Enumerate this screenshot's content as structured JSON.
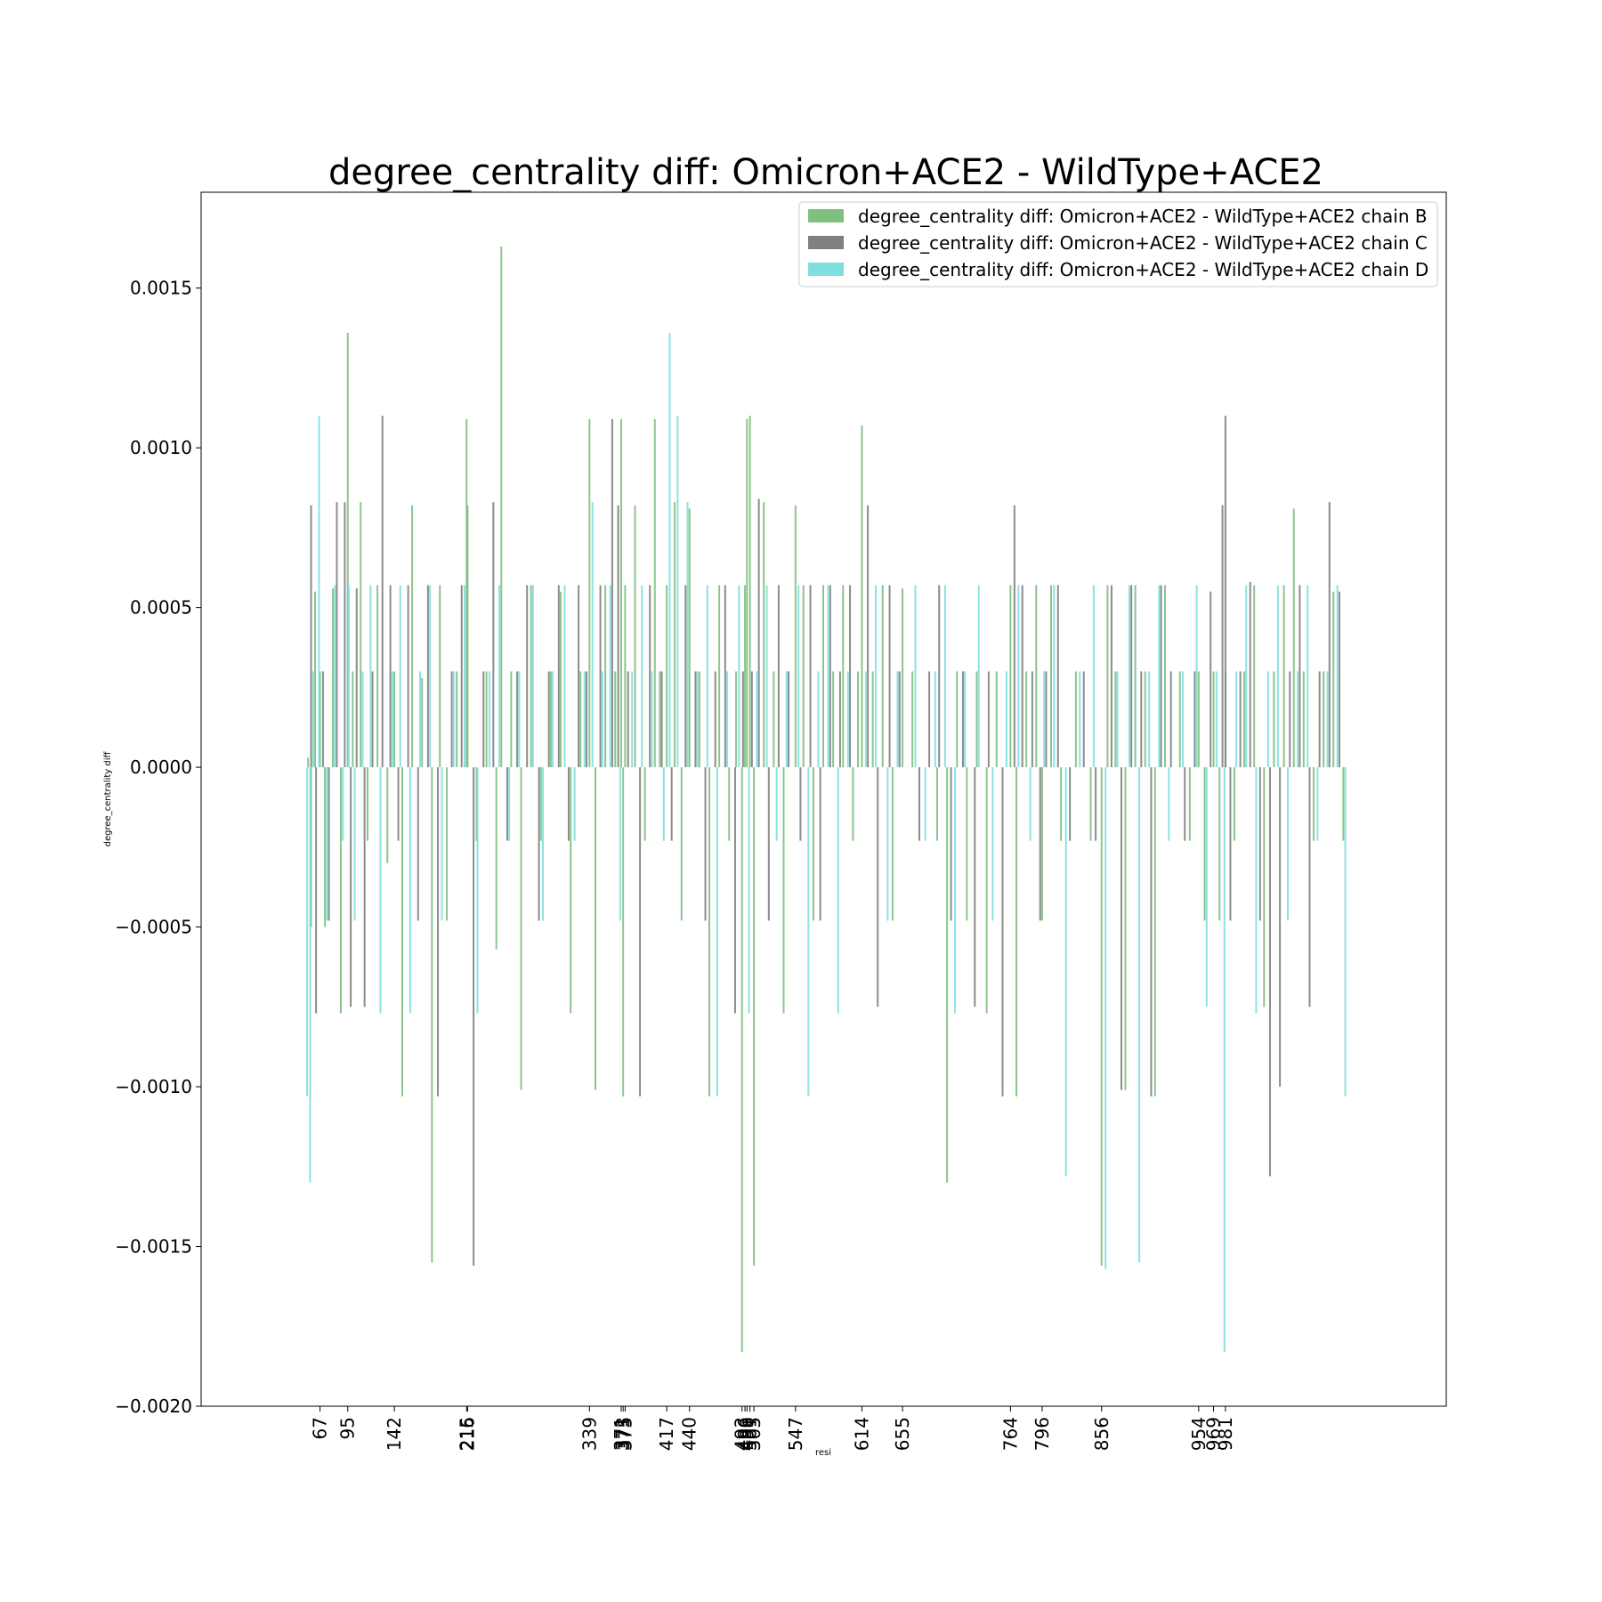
{
  "chart_data": {
    "type": "bar",
    "title": "degree_centrality diff: Omicron+ACE2 - WildType+ACE2",
    "xlabel": "resi",
    "ylabel": "degree_centrality diff",
    "ylim": [
      -0.002,
      0.0018
    ],
    "xlim": [
      0,
      1150
    ],
    "yticks": [
      -0.002,
      -0.0015,
      -0.001,
      -0.0005,
      0.0,
      0.0005,
      0.001,
      0.0015
    ],
    "ytick_labels": [
      "−0.0020",
      "−0.0015",
      "−0.0010",
      "−0.0005",
      "0.0000",
      "0.0005",
      "0.0010",
      "0.0015"
    ],
    "xticks": [
      67,
      95,
      142,
      215,
      216,
      339,
      371,
      373,
      375,
      417,
      440,
      493,
      496,
      498,
      501,
      505,
      547,
      614,
      655,
      764,
      796,
      856,
      954,
      969,
      981
    ],
    "grid": false,
    "legend_position": "upper right",
    "series": [
      {
        "name": "degree_centrality diff: Omicron+ACE2 - WildType+ACE2 chain B",
        "color": "#7fbf7f",
        "x": [
          55,
          58,
          62,
          67,
          72,
          80,
          88,
          95,
          100,
          108,
          115,
          125,
          135,
          142,
          150,
          160,
          170,
          180,
          188,
          195,
          205,
          215,
          216,
          225,
          235,
          245,
          250,
          260,
          270,
          280,
          290,
          300,
          310,
          320,
          330,
          339,
          345,
          355,
          365,
          371,
          373,
          375,
          385,
          395,
          405,
          410,
          417,
          425,
          432,
          440,
          450,
          460,
          470,
          480,
          487,
          493,
          496,
          498,
          501,
          505,
          515,
          525,
          535,
          547,
          555,
          565,
          575,
          585,
          595,
          605,
          610,
          614,
          625,
          635,
          645,
          655,
          665,
          690,
          700,
          710,
          720,
          730,
          740,
          750,
          764,
          770,
          780,
          790,
          796,
          805,
          815,
          830,
          845,
          856,
          862,
          870,
          880,
          890,
          900,
          910,
          920,
          935,
          945,
          954,
          960,
          969,
          975,
          981,
          990,
          1000,
          1010,
          1020,
          1030,
          1040,
          1050,
          1060,
          1070,
          1080,
          1090,
          1100
        ],
        "values": [
          3e-05,
          -0.0005,
          0.00055,
          0.0003,
          -0.0005,
          0.00056,
          -0.00077,
          0.00136,
          0.0003,
          0.00083,
          -0.00023,
          0.00057,
          -0.0003,
          0.0003,
          -0.00103,
          0.00082,
          0.00028,
          -0.00155,
          0.00057,
          -0.00048,
          0.0003,
          0.00109,
          0.00082,
          -0.00023,
          0.0003,
          -0.00057,
          0.00163,
          0.0003,
          -0.00101,
          0.00057,
          -0.00023,
          0.0003,
          0.00055,
          -0.00077,
          0.0003,
          0.00109,
          -0.00101,
          0.00057,
          0.0003,
          0.00109,
          -0.00103,
          0.00057,
          0.00082,
          -0.00023,
          0.00109,
          0.0003,
          0.00057,
          0.00083,
          -0.00048,
          0.00081,
          0.0003,
          -0.00103,
          0.00057,
          -0.00023,
          0.0003,
          -0.00183,
          0.00057,
          0.00109,
          0.0011,
          -0.00156,
          0.00083,
          0.0003,
          -0.00077,
          0.00082,
          0.00057,
          -0.00048,
          0.00057,
          0.0003,
          0.00057,
          -0.00023,
          0.0003,
          0.00107,
          0.0003,
          0.00057,
          -0.00048,
          0.00056,
          0.0003,
          -0.00023,
          -0.0013,
          0.0003,
          -0.00048,
          0.0003,
          -0.00077,
          0.0003,
          0.00057,
          -0.00103,
          0.0003,
          0.00057,
          -0.00048,
          0.00057,
          -0.00023,
          0.0003,
          -0.00023,
          -0.00156,
          0.00057,
          0.0003,
          -0.00101,
          0.00057,
          0.0003,
          -0.00103,
          0.00057,
          0.0003,
          -0.00023,
          0.0003,
          -0.00048,
          0.0003,
          -0.00048,
          0.0003,
          -0.00023,
          0.0003,
          0.00057,
          -0.00075,
          0.0003,
          0.00057,
          0.00081,
          0.0003,
          -0.00023,
          0.0003,
          0.00055,
          -0.00023
        ]
      },
      {
        "name": "degree_centrality diff: Omicron+ACE2 - WildType+ACE2 chain C",
        "color": "#808080",
        "x": [
          58,
          63,
          70,
          76,
          84,
          92,
          98,
          104,
          112,
          120,
          130,
          138,
          146,
          156,
          166,
          176,
          186,
          200,
          210,
          222,
          232,
          242,
          256,
          266,
          276,
          288,
          298,
          308,
          318,
          328,
          336,
          350,
          362,
          368,
          378,
          390,
          400,
          412,
          422,
          436,
          446,
          456,
          466,
          476,
          486,
          494,
          503,
          510,
          520,
          530,
          540,
          552,
          562,
          572,
          582,
          592,
          602,
          620,
          630,
          642,
          652,
          672,
          682,
          692,
          704,
          716,
          728,
          742,
          756,
          768,
          776,
          786,
          794,
          800,
          812,
          824,
          838,
          850,
          866,
          876,
          886,
          896,
          906,
          916,
          926,
          940,
          950,
          966,
          978,
          981,
          986,
          996,
          1006,
          1016,
          1026,
          1036,
          1046,
          1056,
          1066,
          1076,
          1086,
          1096
        ],
        "values": [
          0.00082,
          -0.00077,
          0.0003,
          -0.00048,
          0.00083,
          0.00083,
          -0.00075,
          0.00056,
          -0.00075,
          0.0003,
          0.0011,
          0.00057,
          -0.00023,
          0.00057,
          -0.00048,
          0.00057,
          -0.00103,
          0.0003,
          0.00057,
          -0.00156,
          0.0003,
          0.00083,
          -0.00023,
          0.0003,
          0.00057,
          -0.00048,
          0.0003,
          0.00057,
          -0.00023,
          0.00057,
          0.0003,
          0.00057,
          0.00109,
          0.00082,
          0.0003,
          -0.00103,
          0.00057,
          0.0003,
          -0.00023,
          0.00057,
          0.0003,
          -0.00048,
          0.0003,
          0.00057,
          -0.00077,
          0.0003,
          0.0003,
          0.00084,
          -0.00048,
          0.00057,
          0.0003,
          -0.00023,
          0.00057,
          -0.00048,
          0.00057,
          0.0003,
          0.00057,
          0.00082,
          -0.00075,
          0.00057,
          0.0003,
          -0.00023,
          0.0003,
          0.00057,
          -0.00048,
          0.0003,
          -0.00075,
          0.0003,
          -0.00103,
          0.00082,
          0.00057,
          0.0003,
          -0.00048,
          0.0003,
          0.00057,
          -0.00023,
          0.0003,
          -0.00023,
          0.00057,
          -0.00101,
          0.00057,
          0.0003,
          -0.00103,
          0.00057,
          0.0003,
          -0.00023,
          0.0003,
          0.00055,
          0.00082,
          0.0011,
          -0.00048,
          0.0003,
          0.00058,
          -0.00048,
          -0.00128,
          -0.001,
          0.0003,
          0.00057,
          -0.00075,
          0.0003,
          0.00083,
          0.00055
        ]
      },
      {
        "name": "degree_centrality diff: Omicron+ACE2 - WildType+ACE2 chain D",
        "color": "#7fdfdf",
        "x": [
          54,
          57,
          60,
          66,
          74,
          82,
          90,
          96,
          102,
          110,
          118,
          128,
          140,
          148,
          158,
          168,
          178,
          190,
          202,
          213,
          226,
          238,
          248,
          258,
          268,
          282,
          292,
          302,
          314,
          324,
          334,
          342,
          352,
          360,
          370,
          382,
          392,
          402,
          414,
          420,
          428,
          438,
          448,
          458,
          468,
          478,
          490,
          500,
          508,
          518,
          528,
          538,
          550,
          560,
          570,
          580,
          590,
          600,
          618,
          628,
          640,
          650,
          668,
          678,
          688,
          698,
          708,
          718,
          732,
          746,
          760,
          772,
          784,
          798,
          808,
          820,
          834,
          848,
          860,
          872,
          884,
          894,
          904,
          914,
          924,
          938,
          952,
          962,
          972,
          980,
          992,
          1002,
          1012,
          1024,
          1034,
          1044,
          1054,
          1064,
          1074,
          1084,
          1094,
          1102
        ],
        "values": [
          -0.00103,
          -0.0013,
          0.0003,
          0.0011,
          -0.00048,
          0.00057,
          -0.00023,
          0.00057,
          -0.00048,
          0.0003,
          0.00057,
          -0.00077,
          0.0003,
          0.00057,
          -0.00077,
          0.0003,
          0.00057,
          -0.00048,
          0.0003,
          0.00057,
          -0.00077,
          0.0003,
          0.00057,
          -0.00023,
          0.0003,
          0.00057,
          -0.00048,
          0.0003,
          0.00057,
          -0.00023,
          0.0003,
          0.00083,
          0.0003,
          0.00057,
          -0.00048,
          0.0003,
          0.00057,
          0.0003,
          -0.00023,
          0.00136,
          0.0011,
          0.00083,
          0.0003,
          0.00057,
          -0.00103,
          0.0003,
          0.00057,
          -0.00077,
          0.0003,
          0.00057,
          -0.00023,
          0.0003,
          0.00057,
          -0.00103,
          0.0003,
          0.00057,
          -0.00077,
          0.0003,
          0.0003,
          0.00057,
          -0.00048,
          0.0003,
          0.00057,
          -0.00023,
          0.0003,
          0.00057,
          -0.00077,
          0.0003,
          0.00057,
          -0.00048,
          0.0003,
          0.00057,
          -0.00023,
          0.0003,
          0.00057,
          -0.00128,
          0.0003,
          0.00057,
          -0.00157,
          0.0003,
          0.00057,
          -0.00155,
          0.0003,
          0.00057,
          -0.00023,
          0.0003,
          0.00057,
          -0.00075,
          0.0003,
          -0.00183,
          0.0003,
          0.00057,
          -0.00077,
          0.0003,
          0.00057,
          -0.00048,
          0.0003,
          0.00057,
          -0.00023,
          0.0003,
          0.00057,
          -0.00103
        ]
      }
    ]
  }
}
